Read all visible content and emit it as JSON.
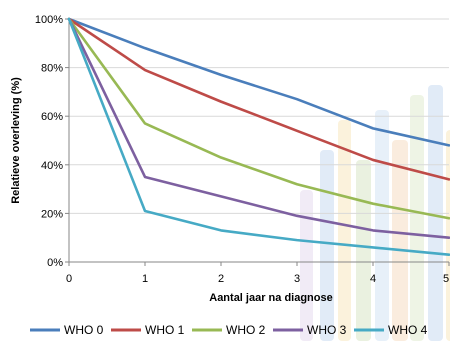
{
  "chart_data": {
    "type": "line",
    "x": [
      0,
      1,
      2,
      3,
      4,
      5
    ],
    "xlabel": "Aantal jaar na diagnose",
    "ylabel": "Relatieve overleving (%)",
    "xlim": [
      0,
      5
    ],
    "ylim": [
      0,
      100
    ],
    "x_ticks": [
      "0",
      "1",
      "2",
      "3",
      "4",
      "5"
    ],
    "y_ticks": [
      "0%",
      "20%",
      "40%",
      "60%",
      "80%",
      "100%"
    ],
    "y_tick_values": [
      0,
      20,
      40,
      60,
      80,
      100
    ],
    "grid": "horizontal",
    "legend_position": "bottom",
    "series": [
      {
        "name": "WHO 0",
        "color": "#4a7ebb",
        "values": [
          100,
          88,
          77,
          67,
          55,
          48
        ]
      },
      {
        "name": "WHO 1",
        "color": "#be4b48",
        "values": [
          100,
          79,
          66,
          54,
          42,
          34
        ]
      },
      {
        "name": "WHO 2",
        "color": "#98b954",
        "values": [
          100,
          57,
          43,
          32,
          24,
          18
        ]
      },
      {
        "name": "WHO 3",
        "color": "#7d60a0",
        "values": [
          100,
          35,
          27,
          19,
          13,
          10
        ]
      },
      {
        "name": "WHO 4",
        "color": "#46aac5",
        "values": [
          100,
          21,
          13,
          9,
          6,
          3
        ]
      }
    ]
  }
}
